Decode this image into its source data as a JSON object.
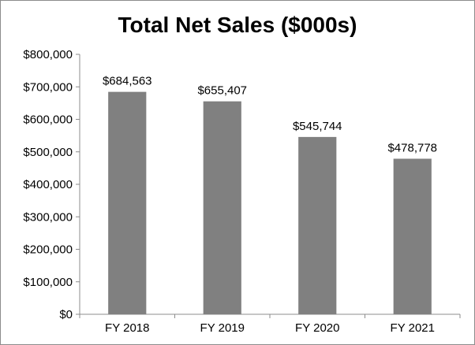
{
  "chart_data": {
    "type": "bar",
    "title": "Total Net Sales ($000s)",
    "categories": [
      "FY 2018",
      "FY 2019",
      "FY 2020",
      "FY 2021"
    ],
    "values": [
      684563,
      655407,
      545744,
      478778
    ],
    "data_labels": [
      "$684,563",
      "$655,407",
      "$545,744",
      "$478,778"
    ],
    "y_ticks": [
      0,
      100000,
      200000,
      300000,
      400000,
      500000,
      600000,
      700000,
      800000
    ],
    "y_tick_labels": [
      "$0",
      "$100,000",
      "$200,000",
      "$300,000",
      "$400,000",
      "$500,000",
      "$600,000",
      "$700,000",
      "$800,000"
    ],
    "ylim": [
      0,
      800000
    ],
    "xlabel": "",
    "ylabel": "",
    "grid": false,
    "legend": "none",
    "bar_color": "#808080",
    "axis_color": "#8c8c8c"
  }
}
